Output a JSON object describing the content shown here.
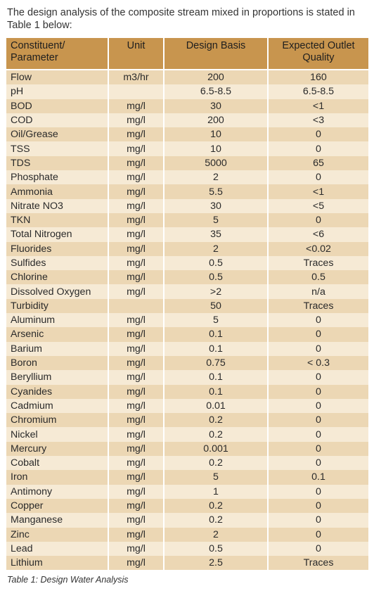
{
  "intro": "The design analysis of the composite stream mixed in proportions is stated in Table 1 below:",
  "table": {
    "headers": {
      "parameter": "Constituent/ Parameter",
      "unit": "Unit",
      "design": "Design Basis",
      "outlet": "Expected Outlet Quality"
    },
    "rows": [
      {
        "name": "Flow",
        "unit": "m3/hr",
        "design": "200",
        "outlet": "160"
      },
      {
        "name": "pH",
        "unit": "",
        "design": "6.5-8.5",
        "outlet": "6.5-8.5"
      },
      {
        "name": "BOD",
        "unit": "mg/l",
        "design": "30",
        "outlet": "<1"
      },
      {
        "name": "COD",
        "unit": "mg/l",
        "design": "200",
        "outlet": "<3"
      },
      {
        "name": "Oil/Grease",
        "unit": "mg/l",
        "design": "10",
        "outlet": "0"
      },
      {
        "name": "TSS",
        "unit": "mg/l",
        "design": "10",
        "outlet": "0"
      },
      {
        "name": "TDS",
        "unit": "mg/l",
        "design": "5000",
        "outlet": "65"
      },
      {
        "name": "Phosphate",
        "unit": "mg/l",
        "design": "2",
        "outlet": "0"
      },
      {
        "name": "Ammonia",
        "unit": "mg/l",
        "design": "5.5",
        "outlet": "<1"
      },
      {
        "name": "Nitrate NO3",
        "unit": "mg/l",
        "design": "30",
        "outlet": "<5"
      },
      {
        "name": "TKN",
        "unit": "mg/l",
        "design": "5",
        "outlet": "0"
      },
      {
        "name": "Total Nitrogen",
        "unit": "mg/l",
        "design": "35",
        "outlet": "<6"
      },
      {
        "name": "Fluorides",
        "unit": "mg/l",
        "design": "2",
        "outlet": "<0.02"
      },
      {
        "name": "Sulfides",
        "unit": "mg/l",
        "design": "0.5",
        "outlet": "Traces"
      },
      {
        "name": "Chlorine",
        "unit": "mg/l",
        "design": "0.5",
        "outlet": "0.5"
      },
      {
        "name": "Dissolved Oxygen",
        "unit": "mg/l",
        "design": ">2",
        "outlet": "n/a"
      },
      {
        "name": "Turbidity",
        "unit": "",
        "design": "50",
        "outlet": "Traces"
      },
      {
        "name": "Aluminum",
        "unit": "mg/l",
        "design": "5",
        "outlet": "0"
      },
      {
        "name": "Arsenic",
        "unit": "mg/l",
        "design": "0.1",
        "outlet": "0"
      },
      {
        "name": "Barium",
        "unit": "mg/l",
        "design": "0.1",
        "outlet": "0"
      },
      {
        "name": "Boron",
        "unit": "mg/l",
        "design": "0.75",
        "outlet": "< 0.3"
      },
      {
        "name": "Beryllium",
        "unit": "mg/l",
        "design": "0.1",
        "outlet": "0"
      },
      {
        "name": "Cyanides",
        "unit": "mg/l",
        "design": "0.1",
        "outlet": "0"
      },
      {
        "name": "Cadmium",
        "unit": "mg/l",
        "design": "0.01",
        "outlet": "0"
      },
      {
        "name": "Chromium",
        "unit": "mg/l",
        "design": "0.2",
        "outlet": "0"
      },
      {
        "name": "Nickel",
        "unit": "mg/l",
        "design": "0.2",
        "outlet": "0"
      },
      {
        "name": "Mercury",
        "unit": "mg/l",
        "design": "0.001",
        "outlet": "0"
      },
      {
        "name": "Cobalt",
        "unit": "mg/l",
        "design": "0.2",
        "outlet": "0"
      },
      {
        "name": "Iron",
        "unit": "mg/l",
        "design": "5",
        "outlet": "0.1"
      },
      {
        "name": "Antimony",
        "unit": "mg/l",
        "design": "1",
        "outlet": "0"
      },
      {
        "name": "Copper",
        "unit": "mg/l",
        "design": "0.2",
        "outlet": "0"
      },
      {
        "name": "Manganese",
        "unit": "mg/l",
        "design": "0.2",
        "outlet": "0"
      },
      {
        "name": "Zinc",
        "unit": "mg/l",
        "design": "2",
        "outlet": "0"
      },
      {
        "name": "Lead",
        "unit": "mg/l",
        "design": "0.5",
        "outlet": "0"
      },
      {
        "name": "Lithium",
        "unit": "mg/l",
        "design": "2.5",
        "outlet": "Traces"
      }
    ]
  },
  "caption": "Table 1: Design Water Analysis",
  "colors": {
    "header": "#c8954e",
    "row_dark": "#ecd7b4",
    "row_light": "#f6ead5"
  }
}
